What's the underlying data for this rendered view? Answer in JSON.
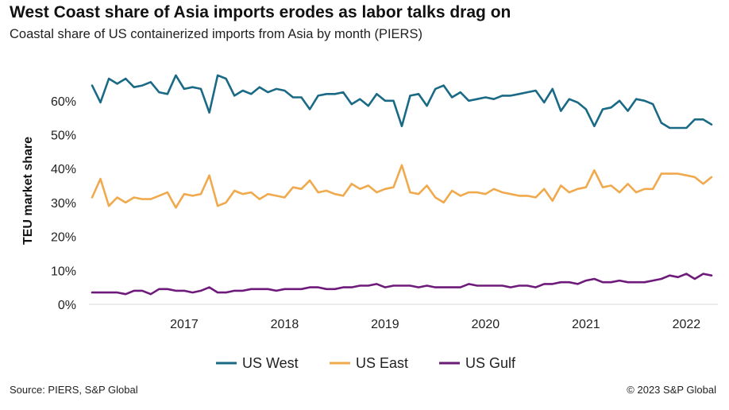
{
  "header": {
    "title": "West Coast share of Asia imports erodes as labor talks drag on",
    "subtitle": "Coastal share of US containerized imports from Asia by month (PIERS)"
  },
  "footer": {
    "source": "Source: PIERS, S&P Global",
    "copyright": "© 2023 S&P Global"
  },
  "chart_data": {
    "type": "line",
    "ylabel": "TEU market share",
    "xlabel": "",
    "ylim": [
      0,
      70
    ],
    "yticks": [
      0,
      10,
      20,
      30,
      40,
      50,
      60
    ],
    "ytick_labels": [
      "0%",
      "10%",
      "20%",
      "30%",
      "40%",
      "50%",
      "60%"
    ],
    "x_start": "2016-08",
    "x_end": "2022-09",
    "xtick_labels": [
      "2017",
      "2018",
      "2019",
      "2020",
      "2021",
      "2022"
    ],
    "grid": false,
    "legend_position": "bottom",
    "series": [
      {
        "name": "US West",
        "color": "#1a6a86",
        "values": [
          64.5,
          59.5,
          66.5,
          65,
          66.5,
          64,
          64.5,
          65.5,
          62.5,
          62,
          67.5,
          63.5,
          64,
          63.5,
          56.5,
          67.5,
          66.5,
          61.5,
          63,
          62,
          64,
          62.5,
          63.5,
          63,
          61,
          61,
          57.5,
          61.5,
          62,
          62,
          62.5,
          59,
          60.5,
          58.5,
          62,
          60,
          60,
          52.5,
          61.5,
          62,
          58.5,
          63.5,
          64.5,
          61,
          62.5,
          60,
          60.5,
          61,
          60.5,
          61.5,
          61.5,
          62,
          62.5,
          63,
          59.5,
          63.5,
          57,
          60.5,
          59.5,
          57.5,
          52.5,
          57.5,
          58,
          60,
          57,
          60.5,
          60,
          59,
          53.5,
          52,
          52,
          52,
          54.5,
          54.5,
          53
        ]
      },
      {
        "name": "US East",
        "color": "#f0a94c",
        "values": [
          31.5,
          37,
          29,
          31.5,
          30,
          31.5,
          31,
          31,
          32,
          33,
          28.5,
          32.5,
          32,
          32.5,
          38,
          29,
          30,
          33.5,
          32.5,
          33,
          31,
          32.5,
          32,
          31.5,
          34.5,
          34,
          36.5,
          33,
          33.5,
          32.5,
          32,
          35.5,
          34,
          35,
          33,
          34,
          34.5,
          41,
          33,
          32.5,
          35,
          31.5,
          30,
          33.5,
          32,
          33,
          33,
          32.5,
          34,
          33,
          32.5,
          32,
          32,
          31.5,
          34,
          30.5,
          35,
          33,
          34,
          34.5,
          39.5,
          34.5,
          35,
          33,
          35.5,
          33,
          34,
          34,
          38.5,
          38.5,
          38.5,
          38,
          37.5,
          35.5,
          37.5
        ]
      },
      {
        "name": "US Gulf",
        "color": "#6e1a7a",
        "values": [
          3.5,
          3.5,
          3.5,
          3.5,
          3,
          4,
          4,
          3,
          4.5,
          4.5,
          4,
          4,
          3.5,
          4,
          5,
          3.5,
          3.5,
          4,
          4,
          4.5,
          4.5,
          4.5,
          4,
          4.5,
          4.5,
          4.5,
          5,
          5,
          4.5,
          4.5,
          5,
          5,
          5.5,
          5.5,
          6,
          5,
          5.5,
          5.5,
          5.5,
          5,
          5.5,
          5,
          5,
          5,
          5,
          6,
          5.5,
          5.5,
          5.5,
          5.5,
          5,
          5.5,
          5.5,
          5,
          6,
          6,
          6.5,
          6.5,
          6,
          7,
          7.5,
          6.5,
          6.5,
          7,
          6.5,
          6.5,
          6.5,
          7,
          7.5,
          8.5,
          8,
          9,
          7.5,
          9,
          8.5
        ]
      }
    ]
  }
}
